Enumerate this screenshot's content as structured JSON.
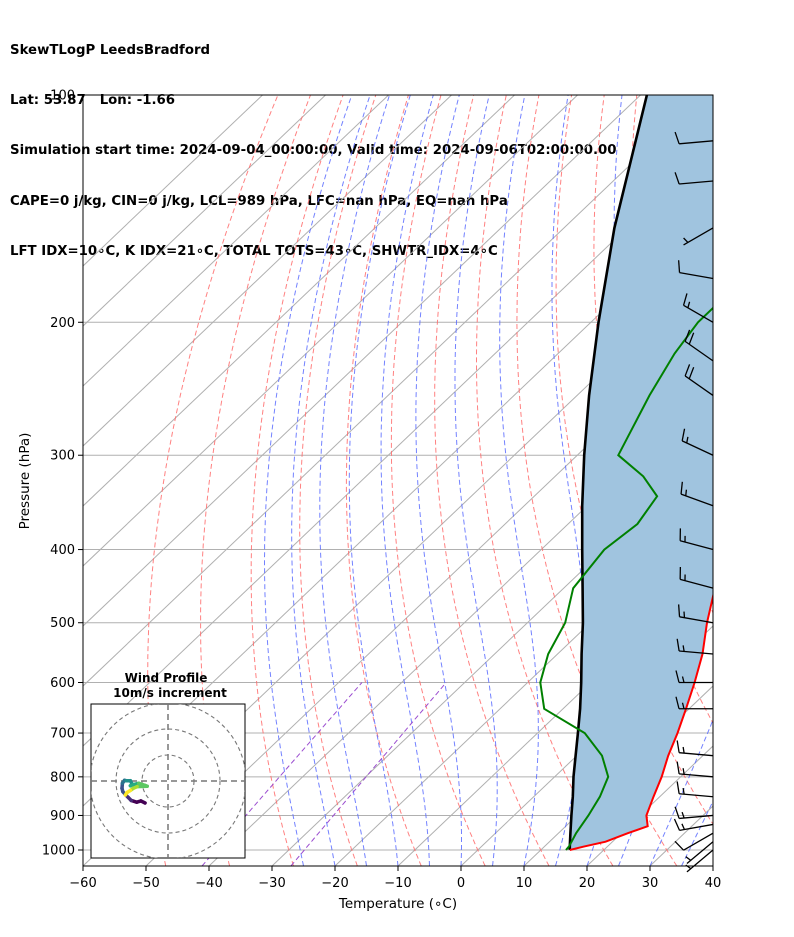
{
  "title_lines": [
    "SkewTLogP LeedsBradford",
    "Lat: 53.87   Lon: -1.66",
    "Simulation start time: 2024-09-04_00:00:00, Valid time: 2024-09-06T02:00:00.00",
    "CAPE=0 j/kg, CIN=0 j/kg, LCL=989 hPa, LFC=nan hPa, EQ=nan hPa",
    "LFT IDX=10∘C, K IDX=21∘C, TOTAL TOTS=43∘C, SHWTR_IDX=4∘C"
  ],
  "chart_data": {
    "type": "skewt",
    "xlabel": "Temperature (∘C)",
    "ylabel": "Pressure (hPa)",
    "xlim": [
      -60,
      40
    ],
    "ylim": [
      1050,
      100
    ],
    "x_ticks": [
      -60,
      -50,
      -40,
      -30,
      -20,
      -10,
      0,
      10,
      20,
      30,
      40
    ],
    "y_ticks": [
      1000,
      900,
      800,
      700,
      600,
      500,
      400,
      300,
      200,
      100
    ],
    "y_scale": "log",
    "colors": {
      "temperature": "#ff0000",
      "dewpoint": "#008000",
      "parcel": "#000000",
      "shade": "#a0c4df",
      "dry_adiabat": "#ff6b6b",
      "moist_adiabat": "#5a6cff",
      "mixing_ratio": "#9b4dd0",
      "isotherm": "#b0b0b0"
    },
    "temperature_profile": [
      [
        1000,
        14.6
      ],
      [
        990,
        16.2
      ],
      [
        975,
        18.9
      ],
      [
        950,
        21.0
      ],
      [
        930,
        23.0
      ],
      [
        900,
        21.0
      ],
      [
        850,
        19.0
      ],
      [
        800,
        17.0
      ],
      [
        750,
        14.5
      ],
      [
        700,
        12.2
      ],
      [
        650,
        9.5
      ],
      [
        600,
        6.5
      ],
      [
        550,
        3.0
      ],
      [
        500,
        -1.5
      ],
      [
        450,
        -6.0
      ],
      [
        400,
        -12.0
      ],
      [
        350,
        -18.5
      ],
      [
        300,
        -25.0
      ],
      [
        250,
        -31.5
      ],
      [
        220,
        -35.0
      ],
      [
        200,
        -34.0
      ],
      [
        190,
        -32.0
      ],
      [
        180,
        -33.0
      ],
      [
        170,
        -34.5
      ],
      [
        150,
        -38.0
      ],
      [
        130,
        -43.0
      ],
      [
        115,
        -48.0
      ],
      [
        100,
        -52.0
      ]
    ],
    "dewpoint_profile": [
      [
        1000,
        14.0
      ],
      [
        990,
        13.9
      ],
      [
        975,
        13.5
      ],
      [
        950,
        12.8
      ],
      [
        900,
        11.8
      ],
      [
        850,
        10.5
      ],
      [
        800,
        8.5
      ],
      [
        750,
        4.0
      ],
      [
        700,
        -2.5
      ],
      [
        650,
        -13.0
      ],
      [
        600,
        -18.0
      ],
      [
        550,
        -21.5
      ],
      [
        500,
        -24.0
      ],
      [
        450,
        -28.5
      ],
      [
        400,
        -30.0
      ],
      [
        370,
        -29.0
      ],
      [
        340,
        -30.5
      ],
      [
        320,
        -36.0
      ],
      [
        300,
        -43.5
      ],
      [
        250,
        -48.5
      ],
      [
        220,
        -51.5
      ],
      [
        200,
        -53.0
      ],
      [
        180,
        -53.0
      ],
      [
        165,
        -57.0
      ],
      [
        150,
        -64.0
      ],
      [
        135,
        -68.0
      ],
      [
        115,
        -64.0
      ],
      [
        100,
        -62.5
      ]
    ],
    "parcel_profile": [
      [
        1000,
        14.6
      ],
      [
        989,
        14.0
      ],
      [
        950,
        11.9
      ],
      [
        900,
        9.1
      ],
      [
        850,
        6.2
      ],
      [
        800,
        3.0
      ],
      [
        750,
        -0.2
      ],
      [
        700,
        -3.6
      ],
      [
        650,
        -7.3
      ],
      [
        600,
        -11.5
      ],
      [
        550,
        -16.2
      ],
      [
        500,
        -21.2
      ],
      [
        450,
        -27.0
      ],
      [
        400,
        -33.5
      ],
      [
        350,
        -40.8
      ],
      [
        300,
        -48.9
      ],
      [
        250,
        -58.1
      ],
      [
        200,
        -68.8
      ],
      [
        150,
        -82.0
      ],
      [
        100,
        -99.0
      ]
    ],
    "wind_barbs": [
      {
        "p": 1000,
        "speed_kt": 5,
        "dir": 230
      },
      {
        "p": 975,
        "speed_kt": 5,
        "dir": 230
      },
      {
        "p": 950,
        "speed_kt": 10,
        "dir": 240
      },
      {
        "p": 925,
        "speed_kt": 15,
        "dir": 260
      },
      {
        "p": 900,
        "speed_kt": 15,
        "dir": 265
      },
      {
        "p": 850,
        "speed_kt": 15,
        "dir": 275
      },
      {
        "p": 800,
        "speed_kt": 15,
        "dir": 275
      },
      {
        "p": 750,
        "speed_kt": 15,
        "dir": 275
      },
      {
        "p": 650,
        "speed_kt": 15,
        "dir": 270
      },
      {
        "p": 600,
        "speed_kt": 15,
        "dir": 270
      },
      {
        "p": 550,
        "speed_kt": 15,
        "dir": 275
      },
      {
        "p": 500,
        "speed_kt": 15,
        "dir": 280
      },
      {
        "p": 450,
        "speed_kt": 15,
        "dir": 285
      },
      {
        "p": 400,
        "speed_kt": 15,
        "dir": 285
      },
      {
        "p": 350,
        "speed_kt": 15,
        "dir": 290
      },
      {
        "p": 300,
        "speed_kt": 15,
        "dir": 295
      },
      {
        "p": 250,
        "speed_kt": 20,
        "dir": 305
      },
      {
        "p": 225,
        "speed_kt": 20,
        "dir": 305
      },
      {
        "p": 200,
        "speed_kt": 15,
        "dir": 300
      },
      {
        "p": 175,
        "speed_kt": 10,
        "dir": 280
      },
      {
        "p": 150,
        "speed_kt": 5,
        "dir": 240
      },
      {
        "p": 130,
        "speed_kt": 10,
        "dir": 265
      },
      {
        "p": 115,
        "speed_kt": 10,
        "dir": 265
      }
    ],
    "hodograph": {
      "title": "Wind Profile",
      "subtitle": "10m/s increment",
      "ring_spacing_ms": 10,
      "n_rings": 3,
      "points_uv": [
        [
          -1.5,
          -4.5
        ],
        [
          -2.5,
          -4.0
        ],
        [
          -3.5,
          -4.3
        ],
        [
          -4.8,
          -3.9
        ],
        [
          -5.5,
          -3.2
        ],
        [
          -6.2,
          -2.5
        ],
        [
          -6.8,
          -1.8
        ],
        [
          -7.0,
          -1.0
        ],
        [
          -6.9,
          0.2
        ],
        [
          -6.4,
          0.9
        ],
        [
          -6.0,
          0.8
        ],
        [
          -5.0,
          0.8
        ],
        [
          -4.6,
          0.0
        ],
        [
          -5.0,
          -0.4
        ],
        [
          -4.2,
          -0.1
        ],
        [
          -3.0,
          0.2
        ],
        [
          -1.5,
          -0.3
        ],
        [
          -1.0,
          -0.5
        ],
        [
          -3.4,
          -0.6
        ],
        [
          -4.3,
          -1.0
        ],
        [
          -5.0,
          -1.5
        ],
        [
          -5.8,
          -2.0
        ],
        [
          -6.2,
          -2.6
        ]
      ]
    }
  }
}
